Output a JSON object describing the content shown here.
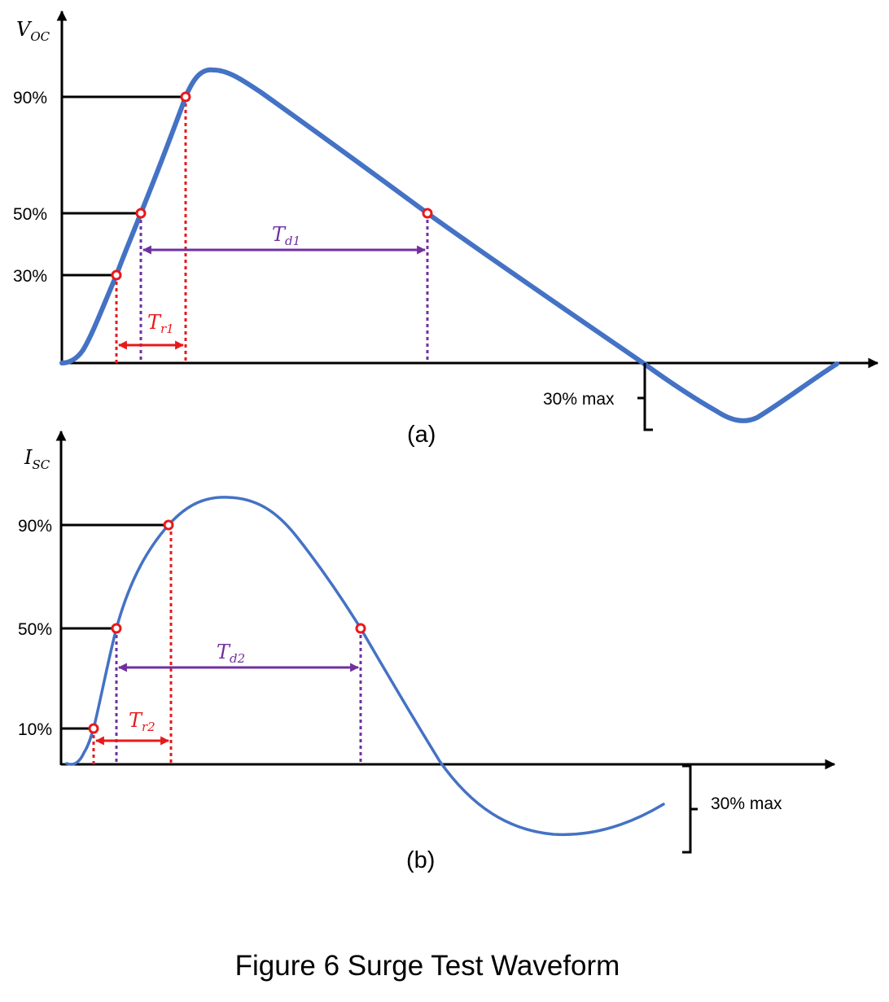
{
  "caption": "Figure 6 Surge Test Waveform",
  "colors": {
    "waveform": "#4472C4",
    "rise_time": "#E8191B",
    "duration": "#7030A0",
    "axes": "#000000",
    "marker_fill": "#ffffff"
  },
  "panels": [
    {
      "id": "a",
      "label": "(a)",
      "y_axis_label": {
        "main": "V",
        "sub": "OC"
      },
      "level_labels": [
        "90%",
        "50%",
        "30%"
      ],
      "rise_time_label": {
        "main": "T",
        "sub": "r1"
      },
      "duration_label": {
        "main": "T",
        "sub": "d1"
      },
      "undershoot_label": "30% max"
    },
    {
      "id": "b",
      "label": "(b)",
      "y_axis_label": {
        "main": "I",
        "sub": "SC"
      },
      "level_labels": [
        "90%",
        "50%",
        "10%"
      ],
      "rise_time_label": {
        "main": "T",
        "sub": "r2"
      },
      "duration_label": {
        "main": "T",
        "sub": "d2"
      },
      "undershoot_label": "30% max"
    }
  ]
}
